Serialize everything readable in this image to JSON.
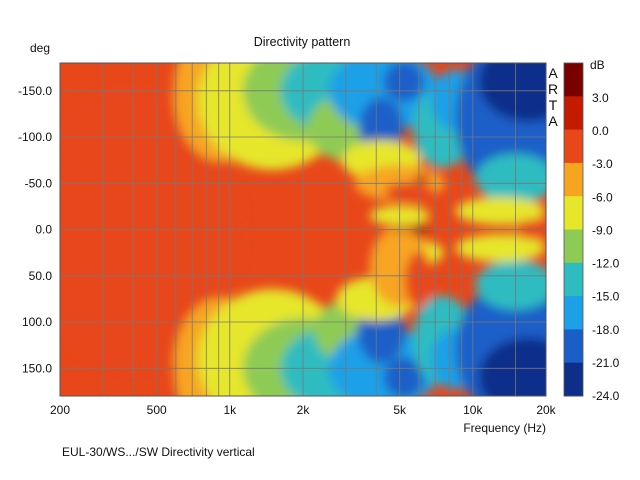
{
  "chart_data": {
    "type": "heatmap",
    "title": "Directivity pattern",
    "xlabel": "Frequency (Hz)",
    "ylabel": "deg",
    "x_scale": "log",
    "xlim": [
      200,
      20000
    ],
    "ylim": [
      -180,
      180
    ],
    "x_ticks": [
      {
        "value": 200,
        "label": "200"
      },
      {
        "value": 500,
        "label": "500"
      },
      {
        "value": 1000,
        "label": "1k"
      },
      {
        "value": 2000,
        "label": "2k"
      },
      {
        "value": 5000,
        "label": "5k"
      },
      {
        "value": 10000,
        "label": "10k"
      },
      {
        "value": 20000,
        "label": "20k"
      }
    ],
    "x_minor_grid": [
      300,
      400,
      600,
      700,
      800,
      900,
      3000,
      4000,
      6000,
      7000,
      8000,
      9000,
      15000
    ],
    "y_ticks": [
      {
        "value": -150,
        "label": "-150.0"
      },
      {
        "value": -100,
        "label": "-100.0"
      },
      {
        "value": -50,
        "label": "-50.0"
      },
      {
        "value": 0,
        "label": "0.0"
      },
      {
        "value": 50,
        "label": "50.0"
      },
      {
        "value": 100,
        "label": "100.0"
      },
      {
        "value": 150,
        "label": "150.0"
      }
    ],
    "colorbar": {
      "label": "dB",
      "levels": [
        {
          "value": 3.0,
          "label": "3.0"
        },
        {
          "value": 0.0,
          "label": "0.0"
        },
        {
          "value": -3.0,
          "label": "-3.0"
        },
        {
          "value": -6.0,
          "label": "-6.0"
        },
        {
          "value": -9.0,
          "label": "-9.0"
        },
        {
          "value": -12.0,
          "label": "-12.0"
        },
        {
          "value": -15.0,
          "label": "-15.0"
        },
        {
          "value": -18.0,
          "label": "-18.0"
        },
        {
          "value": -21.0,
          "label": "-21.0"
        },
        {
          "value": -24.0,
          "label": "-24.0"
        }
      ],
      "colors": [
        "#7a0000",
        "#c41a00",
        "#e8471a",
        "#f7a520",
        "#e6e62a",
        "#8ecb55",
        "#2fbcc1",
        "#1ea0e8",
        "#1a5ec8",
        "#0d2f8a"
      ]
    },
    "watermark": "ARTA",
    "grid": true
  },
  "caption": "EUL-30/WS.../SW Directivity vertical"
}
